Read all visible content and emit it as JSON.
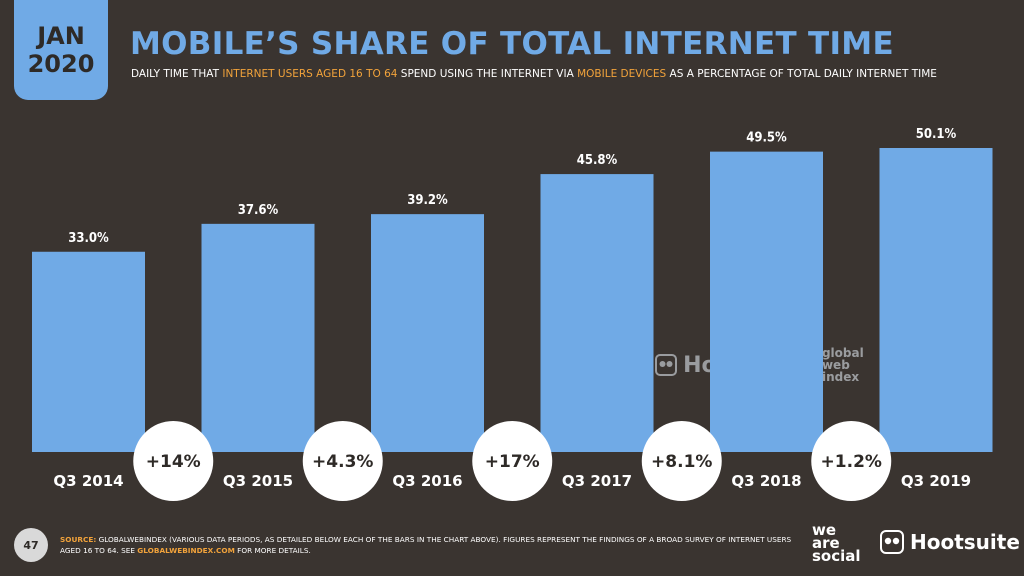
{
  "header": {
    "date_month": "JAN",
    "date_year": "2020",
    "title": "MOBILE’S SHARE OF TOTAL INTERNET TIME",
    "subtitle_1": "DAILY TIME THAT ",
    "subtitle_hl1": "INTERNET USERS AGED 16 TO 64",
    "subtitle_2": " SPEND USING THE INTERNET VIA ",
    "subtitle_hl2": "MOBILE DEVICES",
    "subtitle_3": " AS A PERCENTAGE OF TOTAL DAILY INTERNET TIME"
  },
  "chart_data": {
    "type": "bar",
    "categories": [
      "Q3 2014",
      "Q3 2015",
      "Q3 2016",
      "Q3 2017",
      "Q3 2018",
      "Q3 2019"
    ],
    "values": [
      33.0,
      37.6,
      39.2,
      45.8,
      49.5,
      50.1
    ],
    "value_labels": [
      "33.0%",
      "37.6%",
      "39.2%",
      "45.8%",
      "49.5%",
      "50.1%"
    ],
    "changes": [
      "+14%",
      "+4.3%",
      "+17%",
      "+8.1%",
      "+1.2%"
    ],
    "ylim": [
      0,
      55
    ],
    "grid": false,
    "bar_color": "#70aae6"
  },
  "watermark": {
    "was": [
      "we",
      "are",
      "social"
    ],
    "hootsuite": "Hootsuite",
    "gwi": [
      "global",
      "web",
      "index"
    ]
  },
  "footer": {
    "page_number": "47",
    "source_label": "SOURCE:",
    "source_text": " GLOBALWEBINDEX (VARIOUS DATA PERIODS, AS DETAILED BELOW EACH OF THE BARS IN THE CHART ABOVE). FIGURES REPRESENT THE FINDINGS OF A BROAD SURVEY OF INTERNET USERS AGED 16 TO 64. SEE ",
    "source_link": "GLOBALWEBINDEX.COM",
    "source_end": " FOR MORE DETAILS.",
    "logo_was": [
      "we",
      "are",
      "social"
    ],
    "logo_hootsuite": "Hootsuite"
  },
  "colors": {
    "background": "#3a3430",
    "accent_blue": "#70aae6",
    "accent_orange": "#f2a33b"
  }
}
